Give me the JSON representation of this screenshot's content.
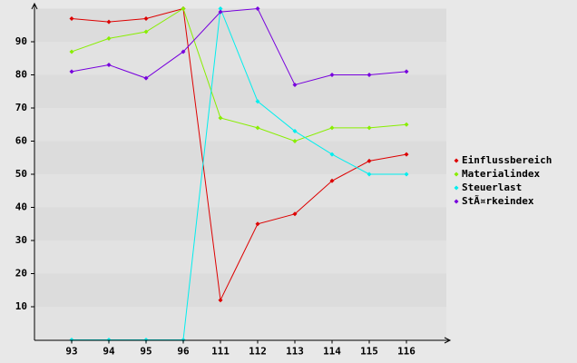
{
  "chart_data": {
    "type": "line",
    "categories": [
      "93",
      "94",
      "95",
      "96",
      "111",
      "112",
      "113",
      "114",
      "115",
      "116"
    ],
    "series": [
      {
        "name": "Einflussbereich",
        "color": "#dd0000",
        "values": [
          97,
          96,
          97,
          100,
          12,
          35,
          38,
          48,
          54,
          56
        ]
      },
      {
        "name": "Materialindex",
        "color": "#88ee00",
        "values": [
          87,
          91,
          93,
          100,
          67,
          64,
          60,
          64,
          64,
          65
        ]
      },
      {
        "name": "Steuerlast",
        "color": "#00eeee",
        "values": [
          0,
          0,
          0,
          0,
          100,
          72,
          63,
          56,
          50,
          50
        ]
      },
      {
        "name": "StÃ¤rkeindex",
        "color": "#7700dd",
        "values": [
          81,
          83,
          79,
          87,
          99,
          100,
          77,
          80,
          80,
          81
        ]
      }
    ],
    "ylim": [
      0,
      100
    ],
    "yticks": [
      10,
      20,
      30,
      40,
      50,
      60,
      70,
      80,
      90
    ],
    "grid": true,
    "legend": "right"
  }
}
